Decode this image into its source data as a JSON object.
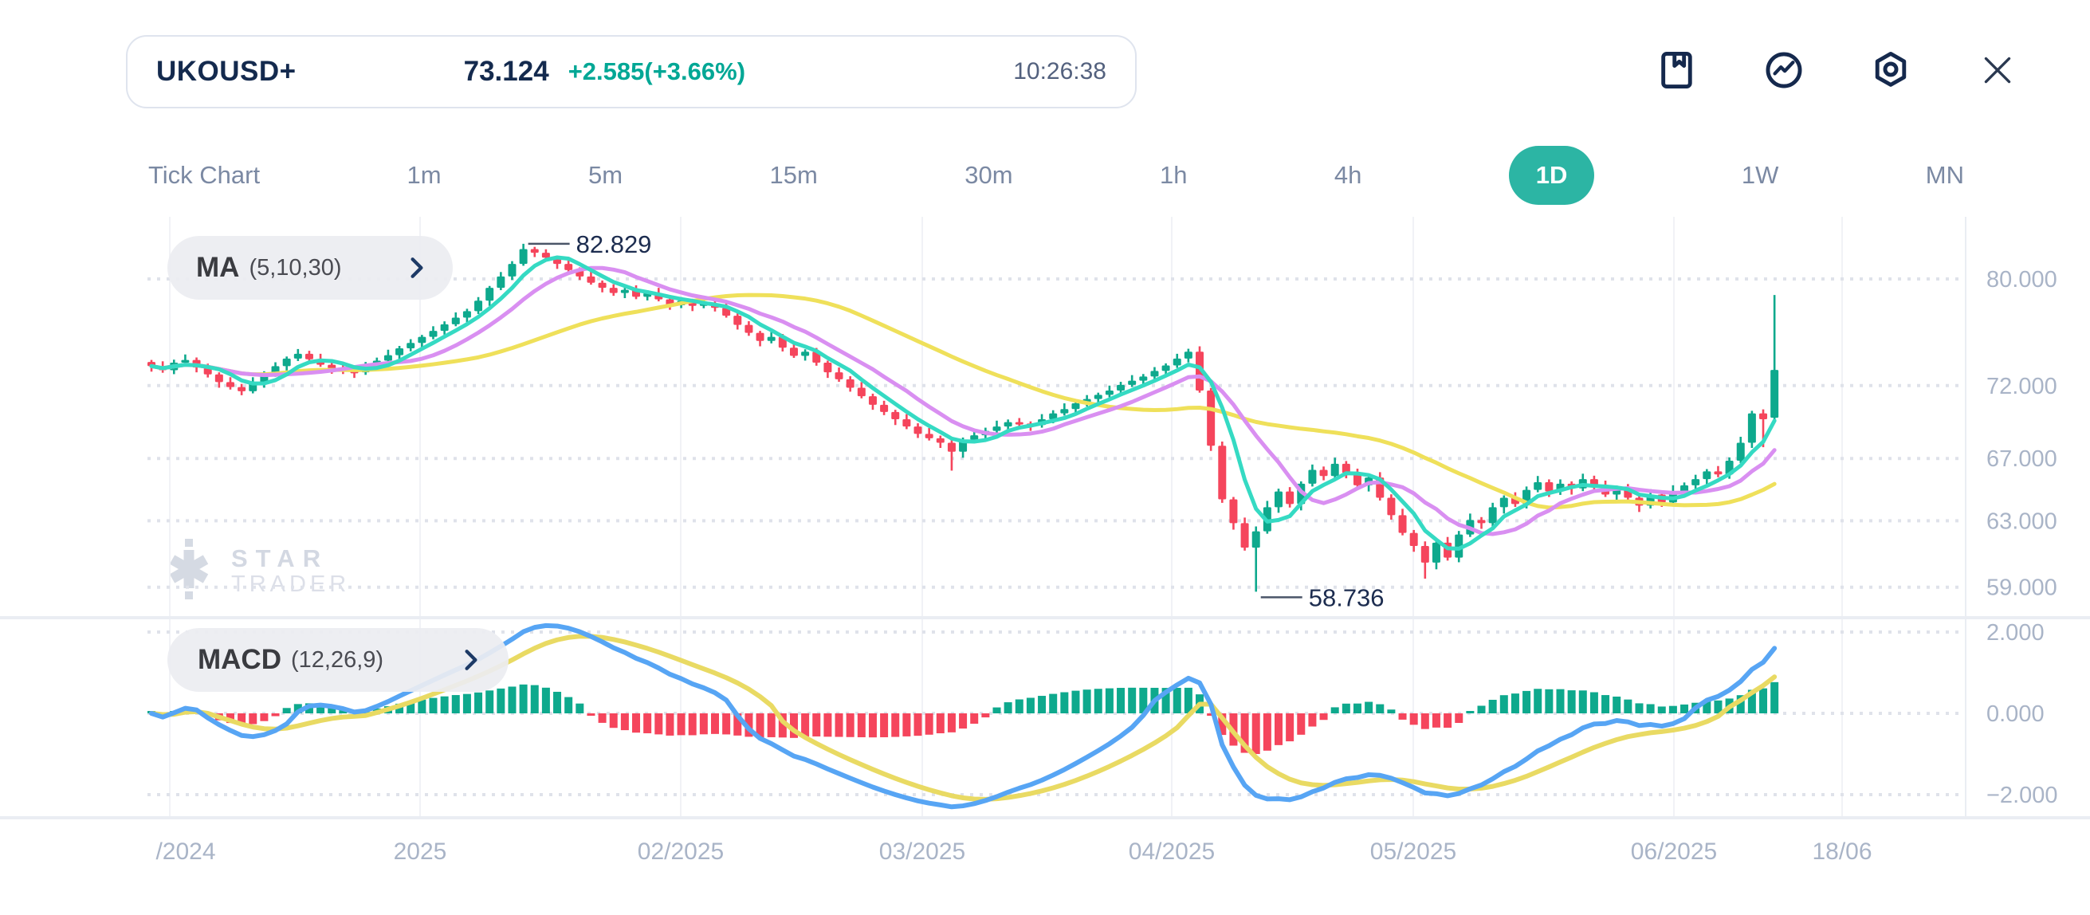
{
  "header": {
    "symbol": "UKOUSD+",
    "price": "73.124",
    "change": "+2.585(+3.66%)",
    "time": "10:26:38"
  },
  "toolbar": {
    "icons": [
      "bookmark",
      "indicator",
      "settings",
      "close"
    ]
  },
  "tabs": {
    "items": [
      "Tick Chart",
      "1m",
      "5m",
      "15m",
      "30m",
      "1h",
      "4h",
      "1D",
      "1W",
      "MN"
    ],
    "active": "1D"
  },
  "indicators": {
    "ma": {
      "name": "MA",
      "params": "(5,10,30)",
      "periods": [
        5,
        10,
        30
      ],
      "colors": {
        "ma5": "#35dac3",
        "ma10": "#d98ff1",
        "ma30": "#efe05a"
      }
    },
    "macd": {
      "name": "MACD",
      "params": "(12,26,9)",
      "fast": 12,
      "slow": 26,
      "signal": 9,
      "colors": {
        "macd_line": "#57a5f4",
        "signal_line": "#e9da63",
        "hist_up": "#0ea98d",
        "hist_down": "#f5455c"
      }
    }
  },
  "watermark": {
    "line1": "STAR",
    "line2": "TRADER"
  },
  "colors": {
    "navy": "#142a4e",
    "teal_change": "#00a795",
    "tab_gray": "#7b89a3",
    "active_pill": "#2cb5a4",
    "axis_label": "#a9b4c7",
    "candle_up": "#0ea98d",
    "candle_down": "#f5455c",
    "grid_dot": "#dfe2ea",
    "grid_vert": "#f1f2f6",
    "separator": "#eaedf3"
  },
  "chart_data": {
    "type": "candlestick",
    "title": "UKOUSD+ 1D with MA(5,10,30) and MACD(12,26,9)",
    "price_axis": {
      "scale": "log",
      "ticks": [
        {
          "value": 80,
          "label": "80.000"
        },
        {
          "value": 72,
          "label": "72.000"
        },
        {
          "value": 67,
          "label": "67.000"
        },
        {
          "value": 63,
          "label": "63.000"
        },
        {
          "value": 59,
          "label": "59.000"
        }
      ]
    },
    "macd_axis": {
      "ticks": [
        {
          "value": 2,
          "label": "2.000"
        },
        {
          "value": 0,
          "label": "0.000"
        },
        {
          "value": -2,
          "label": "−2.000"
        }
      ]
    },
    "x_axis": {
      "labels": [
        "/2024",
        "2025",
        "02/2025",
        "03/2025",
        "04/2025",
        "05/2025",
        "06/2025",
        "18/06"
      ]
    },
    "annotations": {
      "high": {
        "index": 33,
        "value": 82.829,
        "label": "82.829"
      },
      "low": {
        "index": 98,
        "value": 58.736,
        "label": "58.736"
      }
    },
    "candles": [
      [
        73.7,
        73.85,
        73.0,
        73.4
      ],
      [
        73.4,
        73.75,
        72.92,
        73.1
      ],
      [
        73.1,
        73.87,
        72.82,
        73.65
      ],
      [
        73.65,
        74.25,
        73.5,
        73.85
      ],
      [
        73.85,
        74.03,
        72.95,
        73.3
      ],
      [
        73.3,
        73.58,
        72.58,
        72.8
      ],
      [
        72.8,
        72.95,
        71.85,
        72.25
      ],
      [
        72.25,
        72.6,
        71.72,
        71.9
      ],
      [
        71.9,
        72.12,
        71.32,
        71.6
      ],
      [
        71.6,
        72.6,
        71.45,
        72.2
      ],
      [
        72.2,
        73.03,
        71.85,
        72.85
      ],
      [
        72.85,
        73.68,
        72.63,
        73.4
      ],
      [
        73.4,
        74.1,
        73.0,
        73.95
      ],
      [
        73.95,
        74.65,
        73.77,
        74.3
      ],
      [
        74.3,
        74.52,
        73.62,
        73.9
      ],
      [
        73.9,
        74.3,
        73.35,
        73.5
      ],
      [
        73.5,
        73.68,
        72.85,
        73.2
      ],
      [
        73.2,
        73.48,
        72.83,
        73.05
      ],
      [
        73.05,
        73.2,
        72.55,
        72.95
      ],
      [
        72.95,
        73.7,
        72.77,
        73.35
      ],
      [
        73.35,
        74.02,
        73.07,
        73.8
      ],
      [
        73.8,
        74.6,
        73.65,
        74.2
      ],
      [
        74.2,
        74.88,
        73.85,
        74.7
      ],
      [
        74.7,
        75.38,
        74.48,
        75.1
      ],
      [
        75.1,
        75.7,
        74.7,
        75.55
      ],
      [
        75.55,
        76.35,
        75.37,
        76.0
      ],
      [
        76.0,
        76.72,
        75.72,
        76.5
      ],
      [
        76.5,
        77.4,
        76.35,
        77.0
      ],
      [
        77.0,
        77.68,
        76.65,
        77.5
      ],
      [
        77.5,
        78.58,
        77.28,
        78.3
      ],
      [
        78.3,
        79.45,
        77.9,
        79.3
      ],
      [
        79.3,
        80.55,
        79.12,
        80.2
      ],
      [
        80.2,
        81.42,
        79.92,
        81.2
      ],
      [
        81.2,
        82.829,
        81.05,
        82.4
      ],
      [
        82.4,
        82.58,
        81.75,
        82.1
      ],
      [
        82.1,
        82.38,
        81.48,
        81.7
      ],
      [
        81.7,
        81.85,
        80.8,
        81.2
      ],
      [
        81.2,
        81.55,
        80.52,
        80.7
      ],
      [
        80.7,
        80.92,
        79.92,
        80.2
      ],
      [
        80.2,
        80.6,
        79.55,
        79.7
      ],
      [
        79.7,
        79.88,
        78.95,
        79.3
      ],
      [
        79.3,
        79.58,
        78.68,
        78.9
      ],
      [
        78.9,
        79.3,
        78.5,
        79.15
      ],
      [
        79.15,
        79.5,
        78.42,
        78.6
      ],
      [
        78.6,
        79.12,
        78.32,
        78.9
      ],
      [
        78.9,
        79.3,
        78.25,
        78.4
      ],
      [
        78.4,
        78.58,
        77.6,
        77.95
      ],
      [
        77.95,
        78.58,
        77.73,
        78.3
      ],
      [
        78.3,
        78.45,
        77.5,
        77.9
      ],
      [
        77.9,
        78.45,
        77.72,
        78.1
      ],
      [
        78.1,
        78.32,
        77.47,
        77.75
      ],
      [
        77.75,
        78.15,
        77.0,
        77.15
      ],
      [
        77.15,
        77.33,
        76.1,
        76.45
      ],
      [
        76.45,
        76.73,
        75.63,
        75.85
      ],
      [
        75.85,
        76.0,
        74.85,
        75.25
      ],
      [
        75.25,
        75.9,
        75.07,
        75.55
      ],
      [
        75.55,
        75.77,
        74.47,
        74.75
      ],
      [
        74.75,
        75.15,
        74.0,
        74.15
      ],
      [
        74.15,
        74.63,
        73.8,
        74.45
      ],
      [
        74.45,
        74.73,
        73.43,
        73.65
      ],
      [
        73.65,
        73.8,
        72.55,
        72.95
      ],
      [
        72.95,
        73.3,
        72.27,
        72.45
      ],
      [
        72.45,
        72.67,
        71.57,
        71.85
      ],
      [
        71.85,
        72.25,
        71.1,
        71.25
      ],
      [
        71.25,
        71.43,
        70.3,
        70.65
      ],
      [
        70.65,
        70.93,
        69.93,
        70.15
      ],
      [
        70.15,
        70.3,
        69.25,
        69.65
      ],
      [
        69.65,
        70.0,
        68.97,
        69.15
      ],
      [
        69.15,
        69.37,
        68.37,
        68.65
      ],
      [
        68.65,
        69.05,
        68.2,
        68.35
      ],
      [
        68.35,
        68.53,
        67.7,
        68.05
      ],
      [
        68.05,
        68.33,
        66.2,
        67.45
      ],
      [
        67.45,
        68.4,
        67.05,
        68.25
      ],
      [
        68.25,
        68.9,
        68.07,
        68.55
      ],
      [
        68.55,
        69.07,
        68.27,
        68.85
      ],
      [
        68.85,
        69.55,
        68.7,
        69.15
      ],
      [
        69.15,
        69.63,
        68.8,
        69.45
      ],
      [
        69.45,
        69.73,
        69.13,
        69.35
      ],
      [
        69.35,
        69.5,
        68.85,
        69.25
      ],
      [
        69.25,
        70.0,
        69.07,
        69.65
      ],
      [
        69.65,
        70.27,
        69.37,
        70.05
      ],
      [
        70.05,
        70.75,
        69.9,
        70.35
      ],
      [
        70.35,
        70.93,
        70.0,
        70.75
      ],
      [
        70.75,
        71.33,
        70.53,
        71.05
      ],
      [
        71.05,
        71.5,
        70.65,
        71.35
      ],
      [
        71.35,
        72.0,
        71.17,
        71.65
      ],
      [
        71.65,
        72.27,
        71.37,
        72.05
      ],
      [
        72.05,
        72.75,
        71.9,
        72.35
      ],
      [
        72.35,
        72.83,
        72.0,
        72.65
      ],
      [
        72.65,
        73.33,
        72.43,
        73.05
      ],
      [
        73.05,
        73.6,
        72.65,
        73.45
      ],
      [
        73.45,
        74.3,
        73.27,
        73.95
      ],
      [
        73.95,
        74.67,
        73.67,
        74.45
      ],
      [
        74.45,
        74.85,
        71.5,
        71.65
      ],
      [
        71.65,
        71.83,
        67.5,
        67.85
      ],
      [
        67.85,
        68.13,
        64.13,
        64.35
      ],
      [
        64.35,
        64.5,
        62.45,
        62.85
      ],
      [
        62.85,
        63.2,
        61.17,
        61.35
      ],
      [
        61.35,
        62.65,
        58.736,
        62.35
      ],
      [
        62.35,
        64.25,
        62.2,
        63.85
      ],
      [
        63.85,
        65.03,
        63.5,
        64.85
      ],
      [
        64.85,
        65.13,
        63.83,
        64.05
      ],
      [
        64.05,
        65.5,
        63.65,
        65.35
      ],
      [
        65.35,
        66.6,
        65.17,
        66.25
      ],
      [
        66.25,
        66.47,
        65.57,
        65.85
      ],
      [
        65.85,
        67.05,
        65.7,
        66.65
      ],
      [
        66.65,
        66.83,
        65.7,
        66.05
      ],
      [
        66.05,
        66.33,
        65.03,
        65.25
      ],
      [
        65.25,
        65.9,
        64.85,
        65.75
      ],
      [
        65.75,
        66.1,
        64.27,
        64.45
      ],
      [
        64.45,
        64.67,
        63.07,
        63.35
      ],
      [
        63.35,
        63.75,
        62.1,
        62.25
      ],
      [
        62.25,
        62.43,
        61.1,
        61.45
      ],
      [
        61.45,
        61.73,
        59.5,
        60.45
      ],
      [
        60.45,
        61.8,
        60.05,
        61.65
      ],
      [
        61.65,
        62.0,
        60.57,
        60.75
      ],
      [
        60.75,
        62.37,
        60.47,
        62.15
      ],
      [
        62.15,
        63.45,
        62.0,
        63.05
      ],
      [
        63.05,
        63.23,
        62.5,
        62.85
      ],
      [
        62.85,
        64.13,
        62.63,
        63.85
      ],
      [
        63.85,
        64.6,
        63.45,
        64.45
      ],
      [
        64.45,
        64.8,
        63.87,
        64.05
      ],
      [
        64.05,
        65.17,
        63.77,
        64.95
      ],
      [
        64.95,
        65.85,
        64.8,
        65.45
      ],
      [
        65.45,
        65.63,
        64.5,
        64.85
      ],
      [
        64.85,
        65.63,
        64.63,
        65.35
      ],
      [
        65.35,
        65.5,
        64.65,
        65.05
      ],
      [
        65.05,
        66.0,
        64.87,
        65.65
      ],
      [
        65.65,
        65.87,
        64.87,
        65.15
      ],
      [
        65.15,
        65.55,
        64.5,
        64.65
      ],
      [
        64.65,
        65.23,
        64.3,
        65.05
      ],
      [
        65.05,
        65.33,
        64.23,
        64.45
      ],
      [
        64.45,
        64.6,
        63.55,
        63.95
      ],
      [
        63.95,
        65.0,
        63.77,
        64.65
      ],
      [
        64.65,
        64.87,
        63.87,
        64.15
      ],
      [
        64.15,
        65.25,
        64.0,
        64.85
      ],
      [
        64.85,
        65.43,
        64.5,
        65.25
      ],
      [
        65.25,
        65.93,
        65.03,
        65.65
      ],
      [
        65.65,
        66.3,
        65.25,
        66.15
      ],
      [
        66.15,
        66.5,
        65.77,
        65.95
      ],
      [
        65.95,
        67.07,
        65.67,
        66.85
      ],
      [
        66.85,
        68.45,
        66.7,
        68.05
      ],
      [
        68.05,
        70.23,
        67.7,
        70.05
      ],
      [
        70.05,
        70.33,
        67.75,
        69.65
      ],
      [
        69.75,
        78.74,
        69.45,
        73.124
      ]
    ]
  }
}
